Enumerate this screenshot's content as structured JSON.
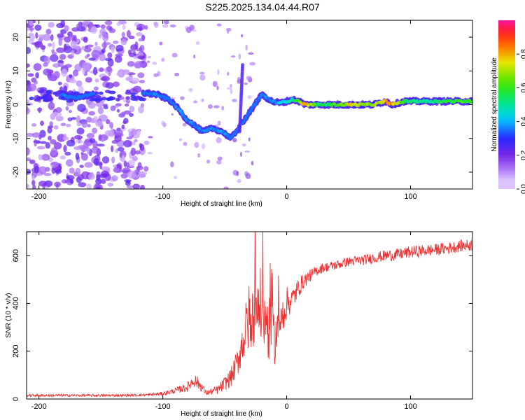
{
  "title": "S225.2025.134.04.44.R07",
  "colors": {
    "snr_line": "#f03030",
    "spectrum_low": "#8a2be2",
    "spectrum_mid": "#00e0ff",
    "spectrum_high": "#ff2020"
  },
  "chart_data": [
    {
      "type": "heatmap",
      "xlabel": "Height of straight line (km)",
      "ylabel": "Frequency (Hz)",
      "xlim": [
        -210,
        150
      ],
      "ylim": [
        -25,
        25
      ],
      "xticks": [
        -200,
        -100,
        0,
        100
      ],
      "yticks": [
        -20,
        -10,
        0,
        10,
        20
      ],
      "colorbar": {
        "label": "Normalized spectral amplitude",
        "range": [
          0.0,
          1.0
        ],
        "ticks": [
          "0.0",
          "0.2",
          "0.4",
          "0.6",
          "0.8"
        ],
        "tick_values": [
          0.0,
          0.2,
          0.4,
          0.6,
          0.8
        ]
      },
      "ridge": [
        {
          "x": -180,
          "y": 2.5,
          "a": 0.35
        },
        {
          "x": -170,
          "y": 2.0,
          "a": 0.3
        },
        {
          "x": -160,
          "y": 3.0,
          "a": 0.3
        },
        {
          "x": -115,
          "y": 3.5,
          "a": 0.3
        },
        {
          "x": -105,
          "y": 3.0,
          "a": 0.35
        },
        {
          "x": -95,
          "y": 1.5,
          "a": 0.3
        },
        {
          "x": -88,
          "y": -1.0,
          "a": 0.35
        },
        {
          "x": -82,
          "y": -4.0,
          "a": 0.35
        },
        {
          "x": -75,
          "y": -6.0,
          "a": 0.35
        },
        {
          "x": -68,
          "y": -8.0,
          "a": 0.35
        },
        {
          "x": -60,
          "y": -7.0,
          "a": 0.35
        },
        {
          "x": -52,
          "y": -8.0,
          "a": 0.35
        },
        {
          "x": -45,
          "y": -10.0,
          "a": 0.3
        },
        {
          "x": -35,
          "y": -5.0,
          "a": 0.3
        },
        {
          "x": -28,
          "y": -1.0,
          "a": 0.3
        },
        {
          "x": -20,
          "y": 3.0,
          "a": 0.35
        },
        {
          "x": -12,
          "y": 1.0,
          "a": 0.35
        },
        {
          "x": -5,
          "y": 0.5,
          "a": 0.4
        },
        {
          "x": 5,
          "y": 1.5,
          "a": 0.5
        },
        {
          "x": 10,
          "y": 1.0,
          "a": 0.65
        },
        {
          "x": 15,
          "y": 0.0,
          "a": 0.8
        },
        {
          "x": 25,
          "y": 0.0,
          "a": 0.55
        },
        {
          "x": 40,
          "y": 0.0,
          "a": 0.6
        },
        {
          "x": 52,
          "y": 0.0,
          "a": 0.75
        },
        {
          "x": 60,
          "y": 0.0,
          "a": 0.7
        },
        {
          "x": 70,
          "y": 0.0,
          "a": 0.65
        },
        {
          "x": 80,
          "y": 1.0,
          "a": 0.8
        },
        {
          "x": 85,
          "y": 0.0,
          "a": 0.85
        },
        {
          "x": 95,
          "y": 1.0,
          "a": 0.55
        },
        {
          "x": 110,
          "y": 1.0,
          "a": 0.5
        },
        {
          "x": 125,
          "y": 1.0,
          "a": 0.55
        },
        {
          "x": 140,
          "y": 1.0,
          "a": 0.6
        },
        {
          "x": 150,
          "y": 1.0,
          "a": 0.6
        }
      ]
    },
    {
      "type": "line",
      "xlabel": "Height of straight line (km)",
      "ylabel": "SNR (10 * v/v)",
      "xlim": [
        -210,
        150
      ],
      "ylim": [
        0,
        700
      ],
      "xticks": [
        -200,
        -100,
        0,
        100
      ],
      "yticks": [
        0,
        200,
        400,
        600
      ],
      "series": [
        {
          "x": [
            -210,
            -190,
            -170,
            -150,
            -130,
            -110,
            -100,
            -90,
            -80,
            -75,
            -70,
            -65,
            -55,
            -45,
            -40,
            -35,
            -30,
            -25,
            -20,
            -15,
            -10,
            -5,
            0,
            5,
            10,
            15,
            20,
            25,
            30,
            40,
            50,
            60,
            70,
            80,
            90,
            100,
            110,
            120,
            130,
            140,
            150
          ],
          "values": [
            15,
            15,
            15,
            15,
            15,
            18,
            22,
            35,
            50,
            80,
            60,
            25,
            40,
            90,
            150,
            250,
            350,
            400,
            380,
            300,
            250,
            330,
            400,
            420,
            470,
            500,
            520,
            540,
            550,
            560,
            575,
            580,
            590,
            600,
            605,
            615,
            620,
            625,
            630,
            640,
            645
          ],
          "amp": [
            5,
            5,
            5,
            5,
            5,
            6,
            8,
            12,
            20,
            30,
            25,
            10,
            20,
            40,
            60,
            100,
            150,
            170,
            160,
            140,
            110,
            90,
            70,
            50,
            40,
            30,
            25,
            22,
            20,
            20,
            20,
            22,
            22,
            24,
            24,
            25,
            25,
            25,
            25,
            25,
            25
          ]
        }
      ]
    }
  ]
}
